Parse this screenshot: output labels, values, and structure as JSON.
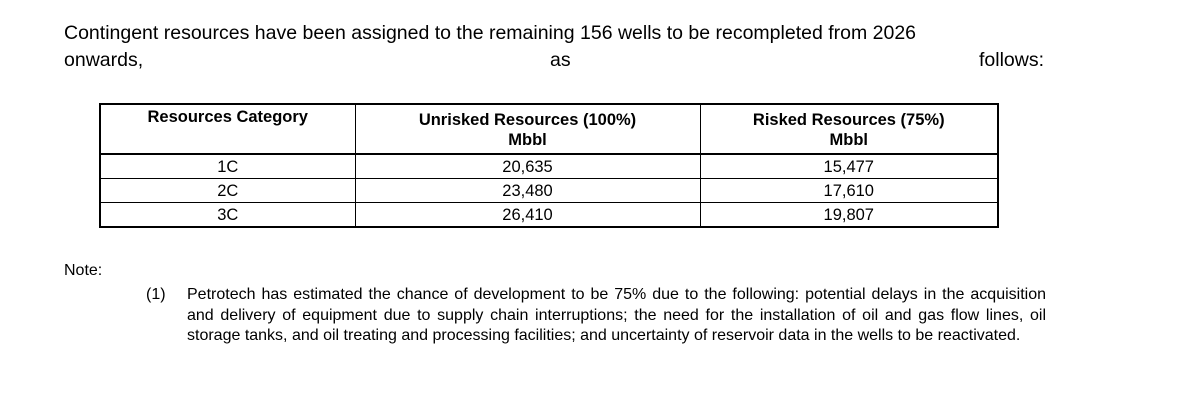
{
  "intro": {
    "line1": "Contingent resources have been assigned to the remaining 156 wells to be recompleted from 2026",
    "line2_left": "onwards,",
    "line2_mid": "as",
    "line2_right": "follows:"
  },
  "table": {
    "headers": [
      {
        "line1": "Resources Category",
        "line2": ""
      },
      {
        "line1": "Unrisked Resources (100%)",
        "line2": "Mbbl"
      },
      {
        "line1": "Risked Resources (75%)",
        "line2": "Mbbl"
      }
    ],
    "rows": [
      {
        "category": "1C",
        "unrisked": "20,635",
        "risked": "15,477"
      },
      {
        "category": "2C",
        "unrisked": "23,480",
        "risked": "17,610"
      },
      {
        "category": "3C",
        "unrisked": "26,410",
        "risked": "19,807"
      }
    ]
  },
  "note": {
    "label": "Note:",
    "items": [
      {
        "number": "(1)",
        "text": "Petrotech has estimated the chance of development to be 75% due to the following:  potential delays in the acquisition and delivery of equipment due to supply chain interruptions; the need for the installation of oil and gas flow lines, oil storage tanks, and oil treating and processing facilities; and uncertainty of reservoir data in the wells to be reactivated."
      }
    ]
  }
}
